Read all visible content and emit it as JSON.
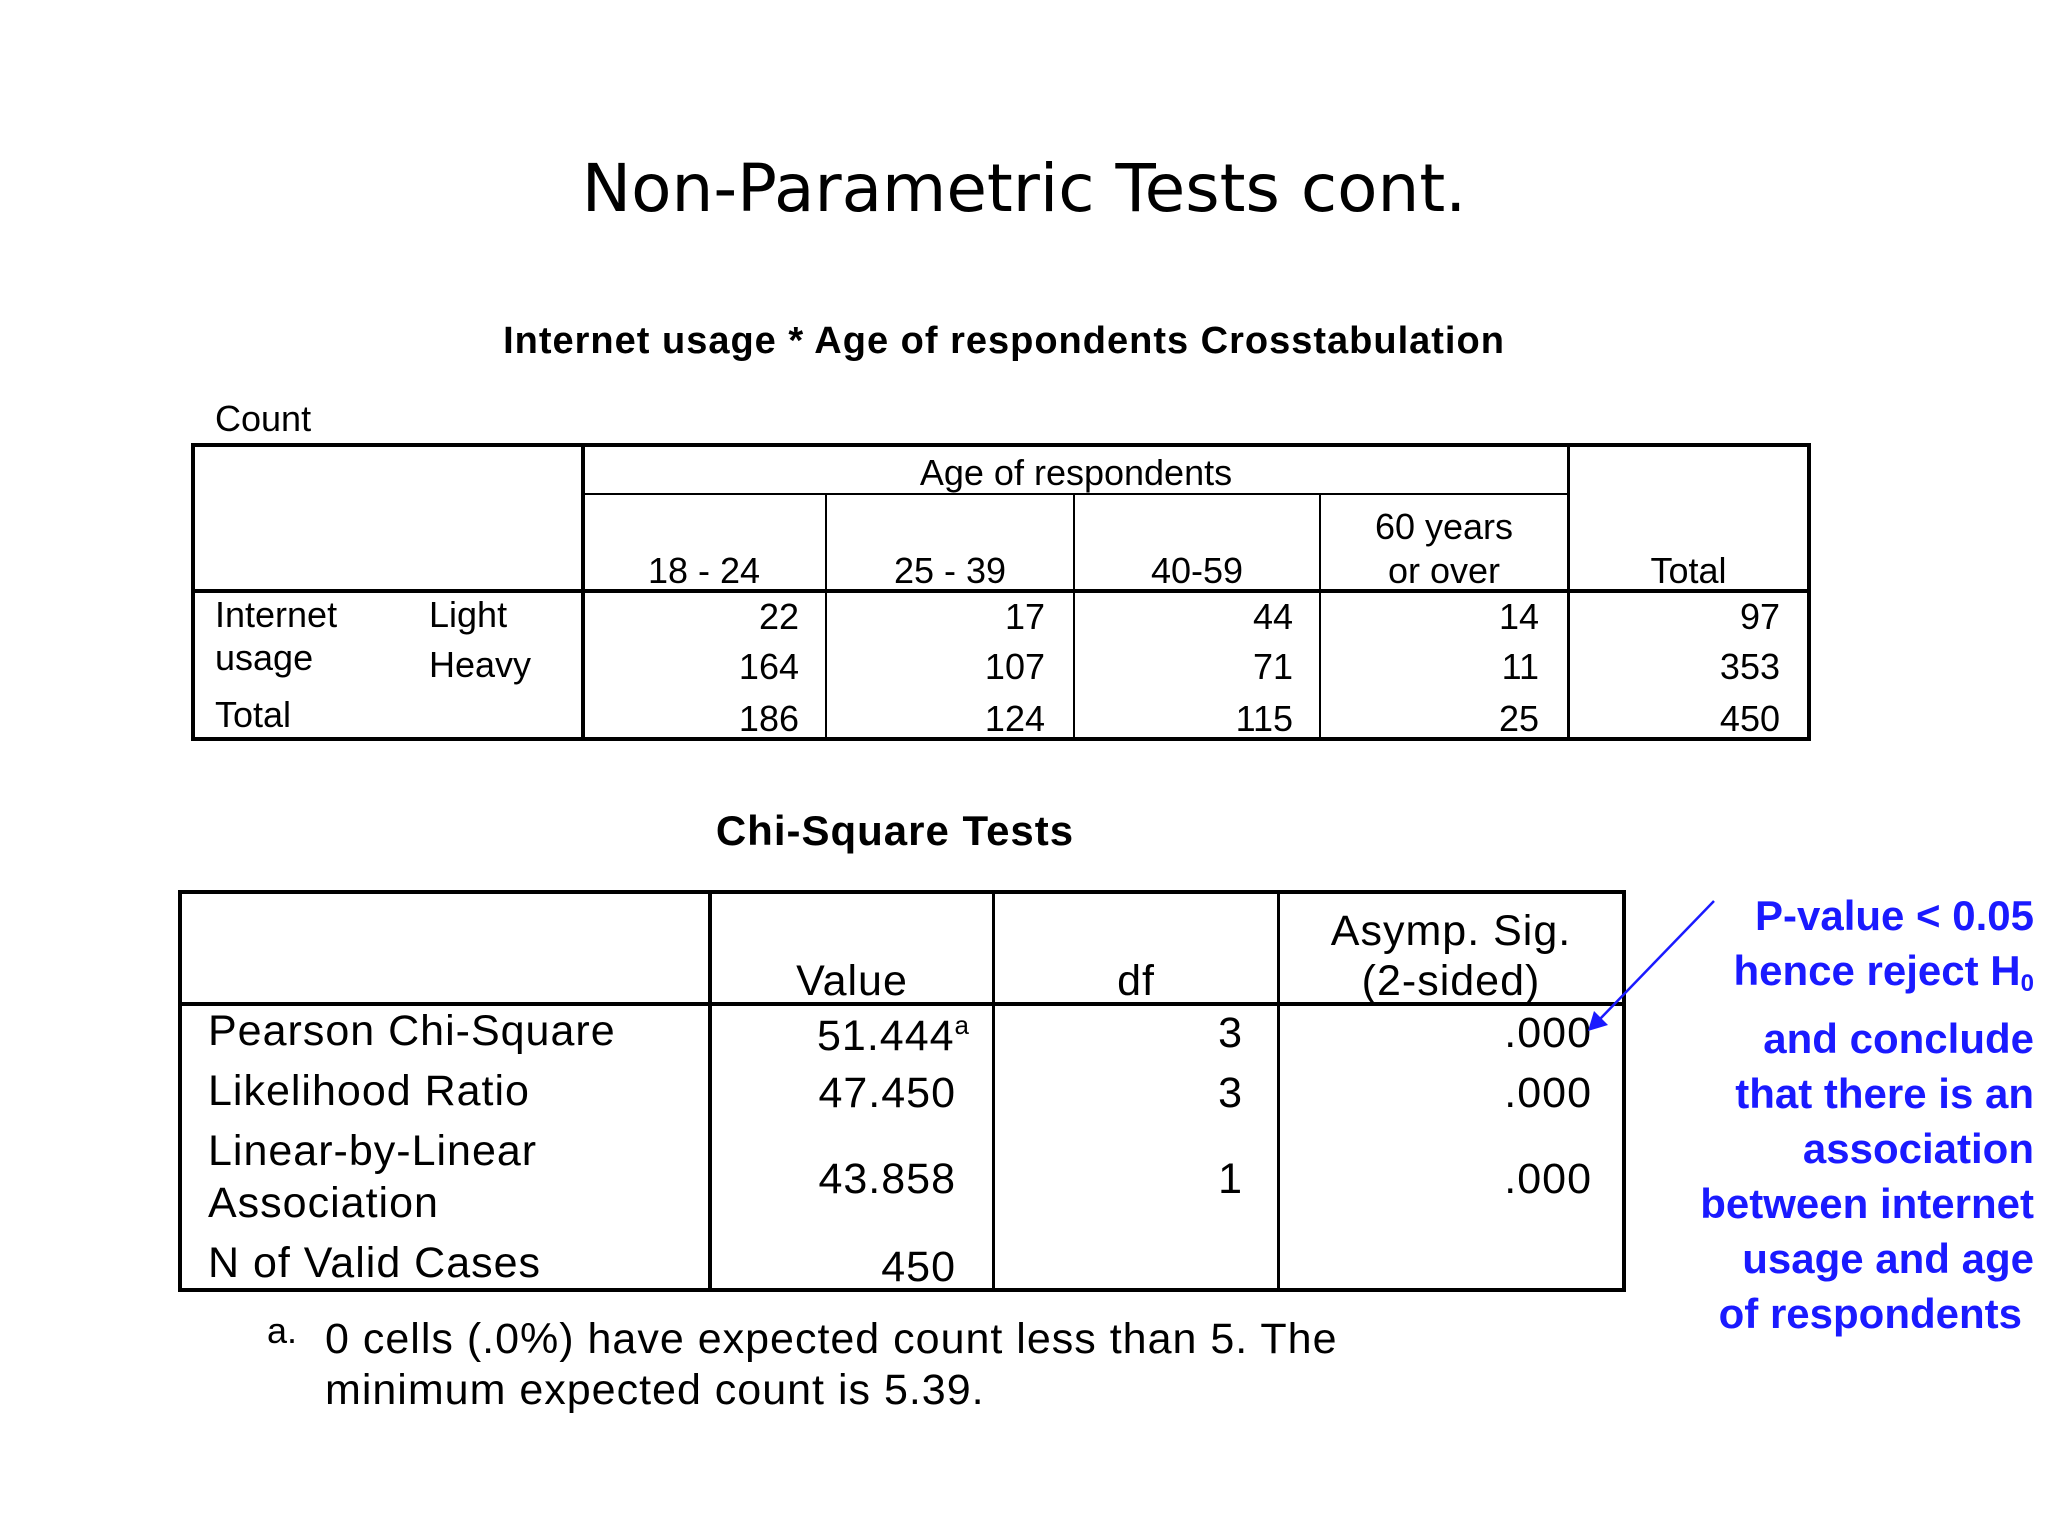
{
  "slide": {
    "title": "Non-Parametric Tests cont."
  },
  "crosstab": {
    "title": "Internet usage * Age of respondents Crosstabulation",
    "count_label": "Count",
    "group_header": "Age of respondents",
    "columns": [
      "18 - 24",
      "25 - 39",
      "40-59",
      "60 years",
      "or over",
      "Total"
    ],
    "row_group_label_line1": "Internet",
    "row_group_label_line2": "usage",
    "rows": [
      {
        "label": "Light",
        "values": [
          "22",
          "17",
          "44",
          "14",
          "97"
        ]
      },
      {
        "label": "Heavy",
        "values": [
          "164",
          "107",
          "71",
          "11",
          "353"
        ]
      }
    ],
    "total_row": {
      "label": "Total",
      "values": [
        "186",
        "124",
        "115",
        "25",
        "450"
      ]
    }
  },
  "chisquare": {
    "title": "Chi-Square Tests",
    "headers": {
      "value": "Value",
      "df": "df",
      "sig_line1": "Asymp. Sig.",
      "sig_line2": "(2-sided)"
    },
    "rows": [
      {
        "label": "Pearson Chi-Square",
        "value": "51.444",
        "superscript": "a",
        "df": "3",
        "sig": ".000"
      },
      {
        "label": "Likelihood Ratio",
        "value": "47.450",
        "df": "3",
        "sig": ".000"
      },
      {
        "label_line1": "Linear-by-Linear",
        "label_line2": "Association",
        "value": "43.858",
        "df": "1",
        "sig": ".000"
      },
      {
        "label": "N of Valid Cases",
        "value": "450"
      }
    ],
    "footnote_marker": "a.",
    "footnote_line1": "0 cells (.0%) have expected count less than 5. The",
    "footnote_line2": "minimum expected count is 5.39."
  },
  "annotation": {
    "line1": "P-value < 0.05",
    "line2_prefix": "hence reject H",
    "line2_sub": "0",
    "line3": "and conclude",
    "line4": "that there is an",
    "line5": "association",
    "line6": "between internet",
    "line7": "usage and age",
    "line8": "of respondents",
    "color": "#1a1aff"
  }
}
